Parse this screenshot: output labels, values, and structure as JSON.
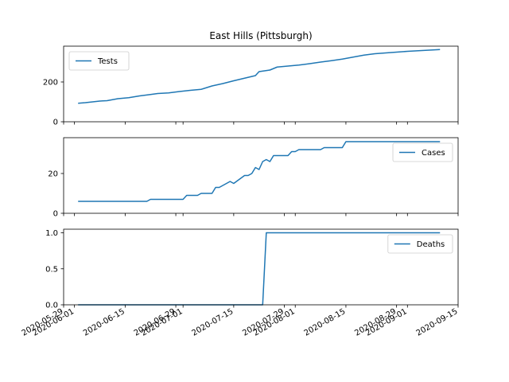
{
  "title": "East Hills (Pittsburgh)",
  "colors": {
    "series": "#1f77b4"
  },
  "x_ticks": [
    {
      "date": "2020-05-29",
      "label": "2020-05-29"
    },
    {
      "date": "2020-06-01",
      "label": "2020-06-01"
    },
    {
      "date": "2020-06-15",
      "label": "2020-06-15"
    },
    {
      "date": "2020-06-29",
      "label": "2020-06-29"
    },
    {
      "date": "2020-07-01",
      "label": "2020-07-01"
    },
    {
      "date": "2020-07-15",
      "label": "2020-07-15"
    },
    {
      "date": "2020-07-29",
      "label": "2020-07-29"
    },
    {
      "date": "2020-08-01",
      "label": "2020-08-01"
    },
    {
      "date": "2020-08-15",
      "label": "2020-08-15"
    },
    {
      "date": "2020-08-29",
      "label": "2020-08-29"
    },
    {
      "date": "2020-09-01",
      "label": "2020-09-01"
    },
    {
      "date": "2020-09-15",
      "label": "2020-09-15"
    }
  ],
  "chart_data": [
    {
      "type": "line",
      "title": "East Hills (Pittsburgh)",
      "legend": "upper left",
      "grid": false,
      "ylim": [
        0,
        380
      ],
      "yticks": [
        0,
        200
      ],
      "xlim": [
        "2020-05-29",
        "2020-09-15"
      ],
      "series": [
        {
          "name": "Tests",
          "x": [
            "2020-06-02",
            "2020-06-04",
            "2020-06-06",
            "2020-06-08",
            "2020-06-10",
            "2020-06-13",
            "2020-06-16",
            "2020-06-19",
            "2020-06-22",
            "2020-06-24",
            "2020-06-27",
            "2020-06-30",
            "2020-07-03",
            "2020-07-06",
            "2020-07-09",
            "2020-07-12",
            "2020-07-15",
            "2020-07-18",
            "2020-07-21",
            "2020-07-22",
            "2020-07-25",
            "2020-07-27",
            "2020-07-30",
            "2020-08-02",
            "2020-08-05",
            "2020-08-08",
            "2020-08-11",
            "2020-08-14",
            "2020-08-17",
            "2020-08-20",
            "2020-08-23",
            "2020-08-26",
            "2020-08-29",
            "2020-09-01",
            "2020-09-04",
            "2020-09-07",
            "2020-09-10"
          ],
          "values": [
            93,
            96,
            100,
            104,
            106,
            116,
            121,
            130,
            137,
            142,
            145,
            152,
            158,
            163,
            180,
            192,
            206,
            219,
            232,
            252,
            260,
            275,
            280,
            285,
            292,
            300,
            307,
            315,
            325,
            335,
            342,
            346,
            350,
            354,
            357,
            360,
            363
          ]
        }
      ]
    },
    {
      "type": "line",
      "legend": "upper right",
      "grid": false,
      "ylim": [
        0,
        38
      ],
      "yticks": [
        0,
        20
      ],
      "xlim": [
        "2020-05-29",
        "2020-09-15"
      ],
      "series": [
        {
          "name": "Cases",
          "x": [
            "2020-06-02",
            "2020-06-21",
            "2020-06-22",
            "2020-07-01",
            "2020-07-02",
            "2020-07-05",
            "2020-07-06",
            "2020-07-09",
            "2020-07-10",
            "2020-07-11",
            "2020-07-14",
            "2020-07-15",
            "2020-07-18",
            "2020-07-19",
            "2020-07-20",
            "2020-07-21",
            "2020-07-22",
            "2020-07-23",
            "2020-07-24",
            "2020-07-25",
            "2020-07-26",
            "2020-07-30",
            "2020-07-31",
            "2020-08-01",
            "2020-08-02",
            "2020-08-08",
            "2020-08-09",
            "2020-08-14",
            "2020-08-15",
            "2020-09-10"
          ],
          "values": [
            6,
            6,
            7,
            7,
            9,
            9,
            10,
            10,
            13,
            13,
            16,
            15,
            19,
            19,
            20,
            23,
            22,
            26,
            27,
            26,
            29,
            29,
            31,
            31,
            32,
            32,
            33,
            33,
            36,
            36
          ]
        }
      ]
    },
    {
      "type": "line",
      "legend": "upper right",
      "grid": false,
      "ylim": [
        0,
        1.05
      ],
      "yticks": [
        0.0,
        0.5,
        1.0
      ],
      "ytick_labels": [
        "0.0",
        "0.5",
        "1.0"
      ],
      "xlim": [
        "2020-05-29",
        "2020-09-15"
      ],
      "series": [
        {
          "name": "Deaths",
          "x": [
            "2020-06-02",
            "2020-07-23",
            "2020-07-24",
            "2020-09-10"
          ],
          "values": [
            0,
            0,
            1,
            1
          ]
        }
      ]
    }
  ]
}
